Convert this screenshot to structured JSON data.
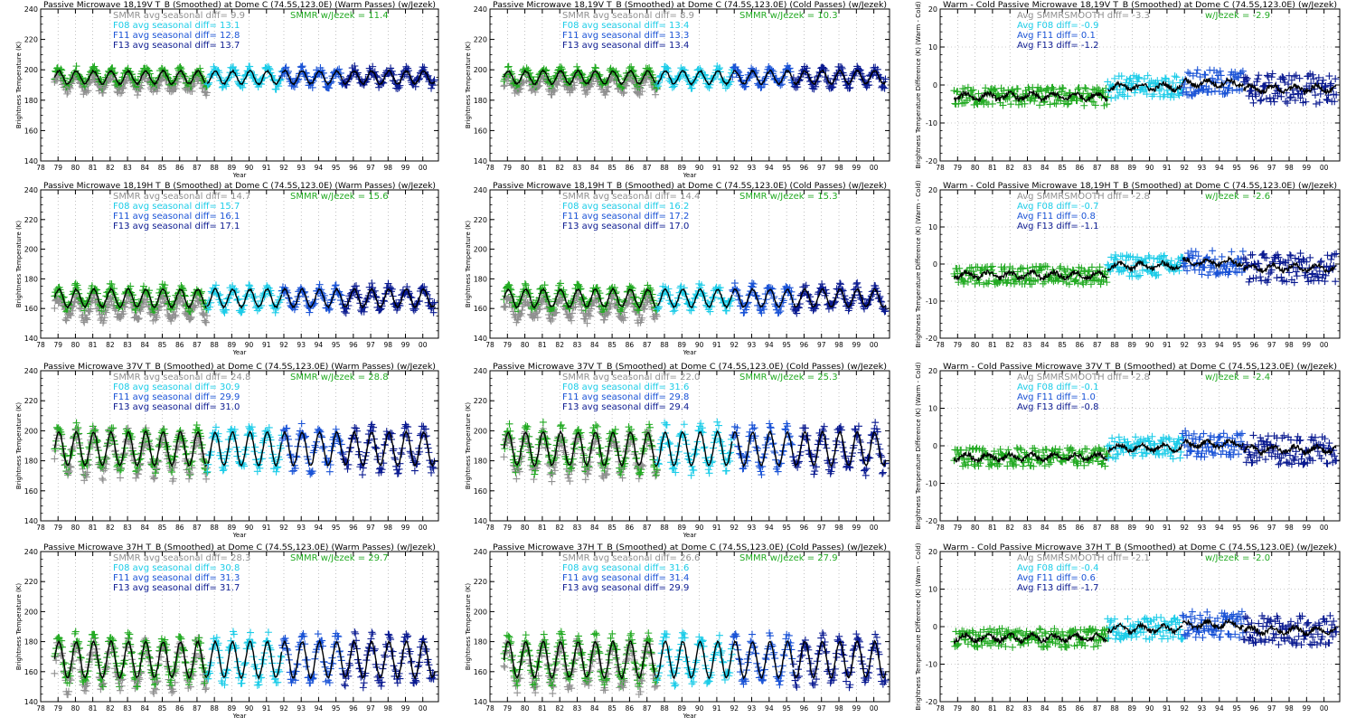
{
  "chart_data": [
    {
      "type": "line",
      "title": "Passive Microwave 18,19V T_B (Smoothed) at Dome C (74.5S,123.0E) (Warm Passes) (w/Jezek)",
      "xlabel": "Year",
      "ylabel": "Brightness Temperature (K)",
      "ylim": [
        140,
        240
      ],
      "yticks": [
        140,
        160,
        180,
        200,
        220,
        240
      ],
      "xlim": [
        78,
        100.9
      ],
      "xtick_labels": [
        "78",
        "79",
        "80",
        "81",
        "82",
        "83",
        "84",
        "85",
        "86",
        "87",
        "88",
        "89",
        "90",
        "91",
        "92",
        "93",
        "94",
        "95",
        "96",
        "97",
        "98",
        "99",
        "00"
      ],
      "mode": "tb",
      "mean": 195,
      "amp": 5,
      "smmr_base": 191,
      "legend": [
        {
          "text": "SMMR avg seasonal diff=",
          "value": "9.9",
          "color": "#909090"
        },
        {
          "text": "SMMR w/Jezek =",
          "value": "11.4",
          "color": "#22aa22"
        },
        {
          "text": "F08 avg seasonal diff=",
          "value": "13.1",
          "color": "#1ccce8"
        },
        {
          "text": "F11 avg seasonal diff=",
          "value": "12.8",
          "color": "#1a53d6"
        },
        {
          "text": "F13 avg seasonal diff=",
          "value": "13.7",
          "color": "#0a1a90"
        }
      ]
    },
    {
      "type": "line",
      "title": "Passive Microwave 18,19V T_B (Smoothed) at Dome C (74.5S,123.0E) (Cold Passes) (w/Jezek)",
      "xlabel": "Year",
      "ylabel": "Brightness Temperature (K)",
      "ylim": [
        140,
        240
      ],
      "yticks": [
        140,
        160,
        180,
        200,
        220,
        240
      ],
      "xlim": [
        78,
        100.9
      ],
      "xtick_labels": [
        "78",
        "79",
        "80",
        "81",
        "82",
        "83",
        "84",
        "85",
        "86",
        "87",
        "88",
        "89",
        "90",
        "91",
        "92",
        "93",
        "94",
        "95",
        "96",
        "97",
        "98",
        "99",
        "00"
      ],
      "mode": "tb",
      "mean": 195,
      "amp": 5,
      "smmr_base": 191,
      "legend": [
        {
          "text": "SMMR avg seasonal diff=",
          "value": "8.9",
          "color": "#909090"
        },
        {
          "text": "SMMR w/Jezek =",
          "value": "10.3",
          "color": "#22aa22"
        },
        {
          "text": "F08 avg seasonal diff=",
          "value": "13.4",
          "color": "#1ccce8"
        },
        {
          "text": "F11 avg seasonal diff=",
          "value": "13.3",
          "color": "#1a53d6"
        },
        {
          "text": "F13 avg seasonal diff=",
          "value": "13.4",
          "color": "#0a1a90"
        }
      ]
    },
    {
      "type": "line",
      "title": "Warm - Cold Passive Microwave 18,19V T_B (Smoothed) at Dome C (74.5S,123.0E) (w/Jezek)",
      "xlabel": "",
      "ylabel": "Brightness Temperature Difference (K) (Warm - Cold)",
      "ylim": [
        -20,
        20
      ],
      "yticks": [
        -20,
        -10,
        0,
        10,
        20
      ],
      "xlim": [
        78,
        100.9
      ],
      "xtick_labels": [
        "78",
        "79",
        "80",
        "81",
        "82",
        "83",
        "84",
        "85",
        "86",
        "87",
        "88",
        "89",
        "90",
        "91",
        "92",
        "93",
        "94",
        "95",
        "96",
        "97",
        "98",
        "99",
        "00"
      ],
      "mode": "diff",
      "mean": -1,
      "amp": 2,
      "smmr_base": -3,
      "legend": [
        {
          "text": "Avg SMMRSMOOTH diff=",
          "value": "-3.3",
          "color": "#909090"
        },
        {
          "text": "w/Jezek =",
          "value": "-2.9",
          "color": "#22aa22"
        },
        {
          "text": "Avg F08 diff=",
          "value": "-0.9",
          "color": "#1ccce8"
        },
        {
          "text": "Avg F11 diff=",
          "value": "0.1",
          "color": "#1a53d6"
        },
        {
          "text": "Avg F13 diff=",
          "value": "-1.2",
          "color": "#0a1a90"
        }
      ]
    },
    {
      "type": "line",
      "title": "Passive Microwave 18,19H T_B (Smoothed) at Dome C (74.5S,123.0E) (Warm Passes) (w/Jezek)",
      "xlabel": "Year",
      "ylabel": "Brightness Temperature (K)",
      "ylim": [
        140,
        240
      ],
      "yticks": [
        140,
        160,
        180,
        200,
        220,
        240
      ],
      "xlim": [
        78,
        100.9
      ],
      "xtick_labels": [
        "78",
        "79",
        "80",
        "81",
        "82",
        "83",
        "84",
        "85",
        "86",
        "87",
        "88",
        "89",
        "90",
        "91",
        "92",
        "93",
        "94",
        "95",
        "96",
        "97",
        "98",
        "99",
        "00"
      ],
      "mode": "tb",
      "mean": 167,
      "amp": 7,
      "smmr_base": 160,
      "legend": [
        {
          "text": "SMMR avg seasonal diff=",
          "value": "14.7",
          "color": "#909090"
        },
        {
          "text": "SMMR w/Jezek =",
          "value": "15.6",
          "color": "#22aa22"
        },
        {
          "text": "F08 avg seasonal diff=",
          "value": "15.7",
          "color": "#1ccce8"
        },
        {
          "text": "F11 avg seasonal diff=",
          "value": "16.1",
          "color": "#1a53d6"
        },
        {
          "text": "F13 avg seasonal diff=",
          "value": "17.1",
          "color": "#0a1a90"
        }
      ]
    },
    {
      "type": "line",
      "title": "Passive Microwave 18,19H T_B (Smoothed) at Dome C (74.5S,123.0E) (Cold Passes) (w/Jezek)",
      "xlabel": "Year",
      "ylabel": "Brightness Temperature (K)",
      "ylim": [
        140,
        240
      ],
      "yticks": [
        140,
        160,
        180,
        200,
        220,
        240
      ],
      "xlim": [
        78,
        100.9
      ],
      "xtick_labels": [
        "78",
        "79",
        "80",
        "81",
        "82",
        "83",
        "84",
        "85",
        "86",
        "87",
        "88",
        "89",
        "90",
        "91",
        "92",
        "93",
        "94",
        "95",
        "96",
        "97",
        "98",
        "99",
        "00"
      ],
      "mode": "tb",
      "mean": 167,
      "amp": 7,
      "smmr_base": 160,
      "legend": [
        {
          "text": "SMMR avg seasonal diff=",
          "value": "14.4",
          "color": "#909090"
        },
        {
          "text": "SMMR w/Jezek =",
          "value": "15.3",
          "color": "#22aa22"
        },
        {
          "text": "F08 avg seasonal diff=",
          "value": "16.2",
          "color": "#1ccce8"
        },
        {
          "text": "F11 avg seasonal diff=",
          "value": "17.2",
          "color": "#1a53d6"
        },
        {
          "text": "F13 avg seasonal diff=",
          "value": "17.0",
          "color": "#0a1a90"
        }
      ]
    },
    {
      "type": "line",
      "title": "Warm - Cold Passive Microwave 18,19H T_B (Smoothed) at Dome C (74.5S,123.0E) (w/Jezek)",
      "xlabel": "",
      "ylabel": "Brightness Temperature Difference (K) (Warm - Cold)",
      "ylim": [
        -20,
        20
      ],
      "yticks": [
        -20,
        -10,
        0,
        10,
        20
      ],
      "xlim": [
        78,
        100.9
      ],
      "xtick_labels": [
        "78",
        "79",
        "80",
        "81",
        "82",
        "83",
        "84",
        "85",
        "86",
        "87",
        "88",
        "89",
        "90",
        "91",
        "92",
        "93",
        "94",
        "95",
        "96",
        "97",
        "98",
        "99",
        "00"
      ],
      "mode": "diff",
      "mean": -1,
      "amp": 2,
      "smmr_base": -3,
      "legend": [
        {
          "text": "Avg SMMRSMOOTH diff=",
          "value": "-2.8",
          "color": "#909090"
        },
        {
          "text": "w/Jezek =",
          "value": "-2.6",
          "color": "#22aa22"
        },
        {
          "text": "Avg F08 diff=",
          "value": "-0.7",
          "color": "#1ccce8"
        },
        {
          "text": "Avg F11 diff=",
          "value": "0.8",
          "color": "#1a53d6"
        },
        {
          "text": "Avg F13 diff=",
          "value": "-1.1",
          "color": "#0a1a90"
        }
      ]
    },
    {
      "type": "line",
      "title": "Passive Microwave 37V T_B (Smoothed) at Dome C (74.5S,123.0E) (Warm Passes) (w/Jezek)",
      "xlabel": "Year",
      "ylabel": "Brightness Temperature (K)",
      "ylim": [
        140,
        240
      ],
      "yticks": [
        140,
        160,
        180,
        200,
        220,
        240
      ],
      "xlim": [
        78,
        100.9
      ],
      "xtick_labels": [
        "78",
        "79",
        "80",
        "81",
        "82",
        "83",
        "84",
        "85",
        "86",
        "87",
        "88",
        "89",
        "90",
        "91",
        "92",
        "93",
        "94",
        "95",
        "96",
        "97",
        "98",
        "99",
        "00"
      ],
      "mode": "tb",
      "mean": 188,
      "amp": 13,
      "smmr_base": 184,
      "legend": [
        {
          "text": "SMMR avg seasonal diff=",
          "value": "24.8",
          "color": "#909090"
        },
        {
          "text": "SMMR w/Jezek =",
          "value": "28.8",
          "color": "#22aa22"
        },
        {
          "text": "F08 avg seasonal diff=",
          "value": "30.9",
          "color": "#1ccce8"
        },
        {
          "text": "F11 avg seasonal diff=",
          "value": "29.9",
          "color": "#1a53d6"
        },
        {
          "text": "F13 avg seasonal diff=",
          "value": "31.0",
          "color": "#0a1a90"
        }
      ]
    },
    {
      "type": "line",
      "title": "Passive Microwave 37V T_B (Smoothed) at Dome C (74.5S,123.0E) (Cold Passes) (w/Jezek)",
      "xlabel": "Year",
      "ylabel": "Brightness Temperature (K)",
      "ylim": [
        140,
        240
      ],
      "yticks": [
        140,
        160,
        180,
        200,
        220,
        240
      ],
      "xlim": [
        78,
        100.9
      ],
      "xtick_labels": [
        "78",
        "79",
        "80",
        "81",
        "82",
        "83",
        "84",
        "85",
        "86",
        "87",
        "88",
        "89",
        "90",
        "91",
        "92",
        "93",
        "94",
        "95",
        "96",
        "97",
        "98",
        "99",
        "00"
      ],
      "mode": "tb",
      "mean": 188,
      "amp": 13,
      "smmr_base": 184,
      "legend": [
        {
          "text": "SMMR avg seasonal diff=",
          "value": "22.0",
          "color": "#909090"
        },
        {
          "text": "SMMR w/Jezek =",
          "value": "25.3",
          "color": "#22aa22"
        },
        {
          "text": "F08 avg seasonal diff=",
          "value": "31.6",
          "color": "#1ccce8"
        },
        {
          "text": "F11 avg seasonal diff=",
          "value": "29.8",
          "color": "#1a53d6"
        },
        {
          "text": "F13 avg seasonal diff=",
          "value": "29.4",
          "color": "#0a1a90"
        }
      ]
    },
    {
      "type": "line",
      "title": "Warm - Cold Passive Microwave 37V T_B (Smoothed) at Dome C (74.5S,123.0E) (w/Jezek)",
      "xlabel": "",
      "ylabel": "Brightness Temperature Difference (K) (Warm - Cold)",
      "ylim": [
        -20,
        20
      ],
      "yticks": [
        -20,
        -10,
        0,
        10,
        20
      ],
      "xlim": [
        78,
        100.9
      ],
      "xtick_labels": [
        "78",
        "79",
        "80",
        "81",
        "82",
        "83",
        "84",
        "85",
        "86",
        "87",
        "88",
        "89",
        "90",
        "91",
        "92",
        "93",
        "94",
        "95",
        "96",
        "97",
        "98",
        "99",
        "00"
      ],
      "mode": "diff",
      "mean": -1,
      "amp": 2,
      "smmr_base": -3,
      "legend": [
        {
          "text": "Avg SMMRSMOOTH diff=",
          "value": "-2.8",
          "color": "#909090"
        },
        {
          "text": "w/Jezek =",
          "value": "-2.4",
          "color": "#22aa22"
        },
        {
          "text": "Avg F08 diff=",
          "value": "-0.1",
          "color": "#1ccce8"
        },
        {
          "text": "Avg F11 diff=",
          "value": "1.0",
          "color": "#1a53d6"
        },
        {
          "text": "Avg F13 diff=",
          "value": "-0.8",
          "color": "#0a1a90"
        }
      ]
    },
    {
      "type": "line",
      "title": "Passive Microwave 37H T_B (Smoothed) at Dome C (74.5S,123.0E) (Warm Passes) (w/Jezek)",
      "xlabel": "Year",
      "ylabel": "Brightness Temperature (K)",
      "ylim": [
        140,
        240
      ],
      "yticks": [
        140,
        160,
        180,
        200,
        220,
        240
      ],
      "xlim": [
        78,
        100.9
      ],
      "xtick_labels": [
        "78",
        "79",
        "80",
        "81",
        "82",
        "83",
        "84",
        "85",
        "86",
        "87",
        "88",
        "89",
        "90",
        "91",
        "92",
        "93",
        "94",
        "95",
        "96",
        "97",
        "98",
        "99",
        "00"
      ],
      "mode": "tb",
      "mean": 168,
      "amp": 14,
      "smmr_base": 164,
      "legend": [
        {
          "text": "SMMR avg seasonal diff=",
          "value": "28.3",
          "color": "#909090"
        },
        {
          "text": "SMMR w/Jezek =",
          "value": "29.7",
          "color": "#22aa22"
        },
        {
          "text": "F08 avg seasonal diff=",
          "value": "30.8",
          "color": "#1ccce8"
        },
        {
          "text": "F11 avg seasonal diff=",
          "value": "31.3",
          "color": "#1a53d6"
        },
        {
          "text": "F13 avg seasonal diff=",
          "value": "31.7",
          "color": "#0a1a90"
        }
      ]
    },
    {
      "type": "line",
      "title": "Passive Microwave 37H T_B (Smoothed) at Dome C (74.5S,123.0E) (Cold Passes) (w/Jezek)",
      "xlabel": "Year",
      "ylabel": "Brightness Temperature (K)",
      "ylim": [
        140,
        240
      ],
      "yticks": [
        140,
        160,
        180,
        200,
        220,
        240
      ],
      "xlim": [
        78,
        100.9
      ],
      "xtick_labels": [
        "78",
        "79",
        "80",
        "81",
        "82",
        "83",
        "84",
        "85",
        "86",
        "87",
        "88",
        "89",
        "90",
        "91",
        "92",
        "93",
        "94",
        "95",
        "96",
        "97",
        "98",
        "99",
        "00"
      ],
      "mode": "tb",
      "mean": 168,
      "amp": 14,
      "smmr_base": 164,
      "legend": [
        {
          "text": "SMMR avg seasonal diff=",
          "value": "26.6",
          "color": "#909090"
        },
        {
          "text": "SMMR w/Jezek =",
          "value": "27.9",
          "color": "#22aa22"
        },
        {
          "text": "F08 avg seasonal diff=",
          "value": "31.6",
          "color": "#1ccce8"
        },
        {
          "text": "F11 avg seasonal diff=",
          "value": "31.4",
          "color": "#1a53d6"
        },
        {
          "text": "F13 avg seasonal diff=",
          "value": "29.9",
          "color": "#0a1a90"
        }
      ]
    },
    {
      "type": "line",
      "title": "Warm - Cold Passive Microwave 37H T_B (Smoothed) at Dome C (74.5S,123.0E) (w/Jezek)",
      "xlabel": "",
      "ylabel": "Brightness Temperature Difference (K) (Warm - Cold)",
      "ylim": [
        -20,
        20
      ],
      "yticks": [
        -20,
        -10,
        0,
        10,
        20
      ],
      "xlim": [
        78,
        100.9
      ],
      "xtick_labels": [
        "78",
        "79",
        "80",
        "81",
        "82",
        "83",
        "84",
        "85",
        "86",
        "87",
        "88",
        "89",
        "90",
        "91",
        "92",
        "93",
        "94",
        "95",
        "96",
        "97",
        "98",
        "99",
        "00"
      ],
      "mode": "diff",
      "mean": -1,
      "amp": 2,
      "smmr_base": -3,
      "legend": [
        {
          "text": "Avg SMMRSMOOTH diff=",
          "value": "-2.1",
          "color": "#909090"
        },
        {
          "text": "w/Jezek =",
          "value": "-2.0",
          "color": "#22aa22"
        },
        {
          "text": "Avg F08 diff=",
          "value": "-0.4",
          "color": "#1ccce8"
        },
        {
          "text": "Avg F11 diff=",
          "value": "0.6",
          "color": "#1a53d6"
        },
        {
          "text": "Avg F13 diff=",
          "value": "-1.7",
          "color": "#0a1a90"
        }
      ]
    }
  ],
  "sensor_periods": [
    {
      "name": "SMMR",
      "start": 78.8,
      "end": 87.6,
      "color": "#22aa22",
      "under_color": "#909090"
    },
    {
      "name": "F08",
      "start": 87.6,
      "end": 91.9,
      "color": "#1ccce8"
    },
    {
      "name": "F11",
      "start": 91.9,
      "end": 95.4,
      "color": "#1a53d6"
    },
    {
      "name": "F13",
      "start": 95.4,
      "end": 100.7,
      "color": "#0a1a90"
    }
  ]
}
